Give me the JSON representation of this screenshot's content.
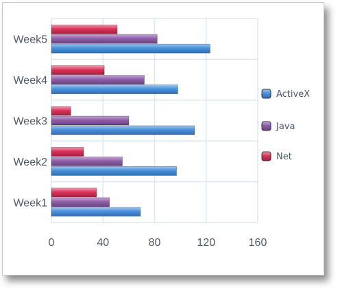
{
  "chart_data": {
    "type": "bar",
    "orientation": "horizontal",
    "categories": [
      "Week1",
      "Week2",
      "Week3",
      "Week4",
      "Week5"
    ],
    "series": [
      {
        "name": "ActiveX",
        "values": [
          69,
          97,
          111,
          98,
          123
        ],
        "color": "#4a90d9"
      },
      {
        "name": "Java",
        "values": [
          45,
          55,
          60,
          72,
          82
        ],
        "color": "#8e5fa6"
      },
      {
        "name": "Net",
        "values": [
          35,
          25,
          15,
          41,
          51
        ],
        "color": "#d9345a"
      }
    ],
    "xlim": [
      0,
      160
    ],
    "xticks": [
      "0",
      "40",
      "80",
      "120",
      "160"
    ],
    "grid": true,
    "legend": "right",
    "title": "",
    "xlabel": "",
    "ylabel": ""
  }
}
